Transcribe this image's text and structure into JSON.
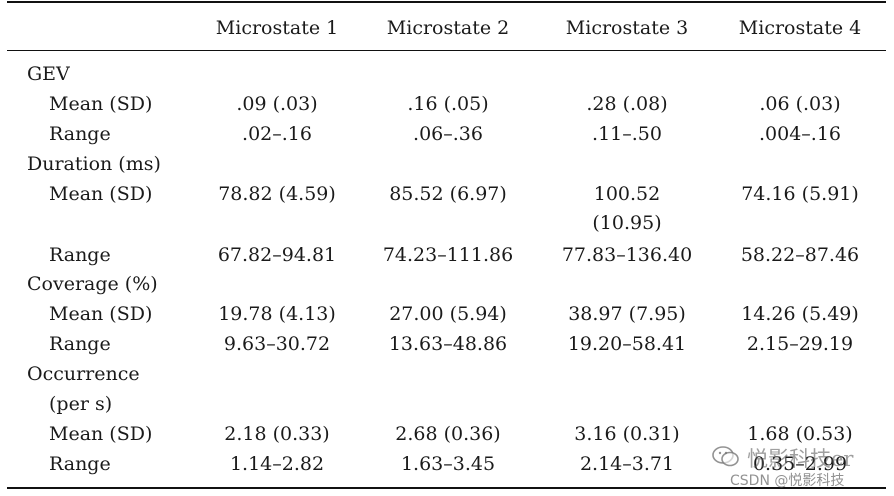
{
  "columns": [
    "Microstate 1",
    "Microstate 2",
    "Microstate 3",
    "Microstate 4"
  ],
  "sections": {
    "gev": {
      "label": "GEV",
      "mean": {
        "label": "Mean (SD)",
        "values": [
          ".09 (.03)",
          ".16 (.05)",
          ".28 (.08)",
          ".06 (.03)"
        ]
      },
      "range": {
        "label": "Range",
        "values": [
          ".02–.16",
          ".06–.36",
          ".11–.50",
          ".004–.16"
        ]
      }
    },
    "duration": {
      "label": "Duration (ms)",
      "mean": {
        "label": "Mean (SD)",
        "values": [
          "78.82 (4.59)",
          "85.52 (6.97)",
          "100.52",
          "74.16 (5.91)"
        ],
        "value3_line2": "(10.95)"
      },
      "range": {
        "label": "Range",
        "values": [
          "67.82–94.81",
          "74.23–111.86",
          "77.83–136.40",
          "58.22–87.46"
        ]
      }
    },
    "coverage": {
      "label": "Coverage (%)",
      "mean": {
        "label": "Mean (SD)",
        "values": [
          "19.78 (4.13)",
          "27.00 (5.94)",
          "38.97 (7.95)",
          "14.26 (5.49)"
        ]
      },
      "range": {
        "label": "Range",
        "values": [
          "9.63–30.72",
          "13.63–48.86",
          "19.20–58.41",
          "2.15–29.19"
        ]
      }
    },
    "occurrence": {
      "label": "Occurrence",
      "label_line2": "(per s)",
      "mean": {
        "label": "Mean (SD)",
        "values": [
          "2.18 (0.33)",
          "2.68 (0.36)",
          "3.16 (0.31)",
          "1.68 (0.53)"
        ]
      },
      "range": {
        "label": "Range",
        "values": [
          "1.14–2.82",
          "1.63–3.45",
          "2.14–3.71",
          "0.35–2.99"
        ]
      }
    }
  },
  "watermark": {
    "line1": "悦影科技",
    "line1_suffix": "er",
    "line2": "CSDN @悦影科技"
  }
}
